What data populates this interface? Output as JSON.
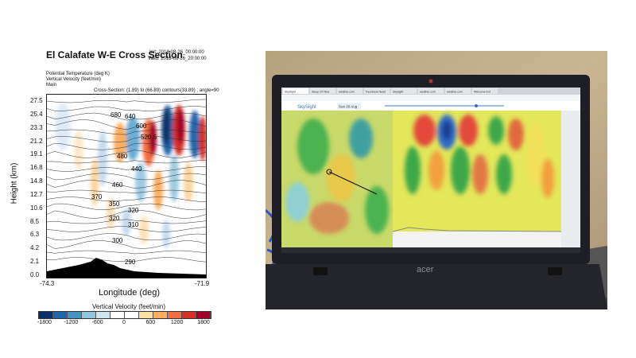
{
  "figure": {
    "title": "El Calafate W-E Cross Section",
    "init": "Init: 2018-08-26_00:00:00",
    "valid": "Valid: 2018-08-26_20:00:00",
    "field1": "Potential Temperature  (deg K)",
    "field2": "Vertical Velocity  (feet/min)",
    "field3": "Main",
    "section": "Cross-Section: (1.89) to (66.89)  contours(33.89) ; angle=90",
    "y_axis_label": "Height (km)",
    "x_axis_label": "Longitude (deg)",
    "y_ticks": [
      "27.5",
      "25.4",
      "23.3",
      "21.2",
      "19.1",
      "16.8",
      "14.8",
      "12.7",
      "10.6",
      "8.5",
      "6.3",
      "4.2",
      "2.1",
      "0.0"
    ],
    "x_ticks": [
      "-74.3",
      "-71.9"
    ],
    "contour_labels": [
      "680",
      "640",
      "600",
      "520.5",
      "480",
      "440",
      "460",
      "370",
      "350",
      "320",
      "320",
      "310",
      "300",
      "290"
    ],
    "colorbar_title": "Vertical Velocity  (feet/min)",
    "colorbar_ticks": [
      "-1800",
      "-1200",
      "-600",
      "0",
      "600",
      "1200",
      "1800"
    ],
    "colorbar_colors": [
      "#08306b",
      "#2166ac",
      "#4393c3",
      "#92c5de",
      "#d1e5f0",
      "#ffffff",
      "#ffffff",
      "#fde0a0",
      "#fdae61",
      "#f46d43",
      "#d73027",
      "#a50026"
    ]
  },
  "laptop": {
    "brand": "acer",
    "app_name": "SkySight",
    "date_button": "Sun 26 Aug",
    "tabs": [
      "SkySight",
      "Sleep Of View",
      "weather.com",
      "Facebook News",
      "Skysight",
      "weather.com",
      "weather.com",
      "Welcome Ent"
    ]
  }
}
